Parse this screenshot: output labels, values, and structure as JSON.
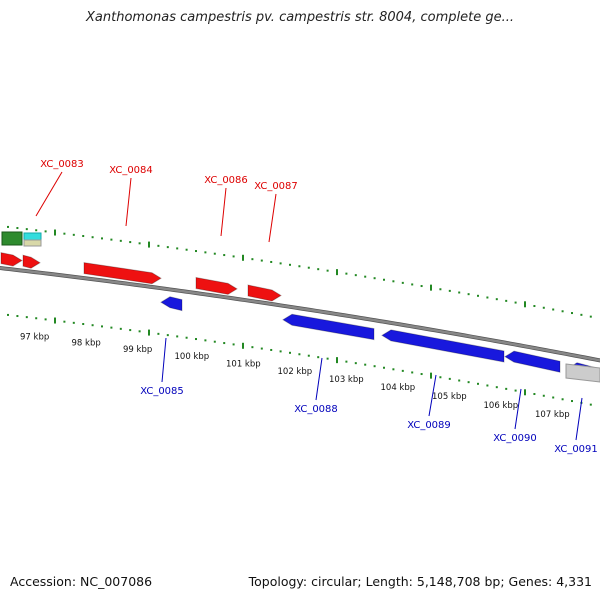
{
  "title": "Xanthomonas campestris pv. campestris str. 8004, complete ge...",
  "footer": {
    "accession": "Accession: NC_007086",
    "stats": "Topology: circular; Length: 5,148,708 bp; Genes: 4,331"
  },
  "colors": {
    "forward_gene": "#ee1111",
    "reverse_gene": "#1818dd",
    "forward_label": "#dd0000",
    "reverse_label": "#0000bb",
    "tick": "#228822",
    "backbone": "#888888",
    "green_feature": "#2e8b2e",
    "cyan_feature": "#33dddd",
    "grey_feature": "#cccccc"
  },
  "tick_labels": [
    "97 kbp",
    "98 kbp",
    "99 kbp",
    "100 kbp",
    "101 kbp",
    "102 kbp",
    "103 kbp",
    "104 kbp",
    "105 kbp",
    "106 kbp",
    "107 kbp"
  ],
  "forward_genes": [
    {
      "label": "XC_0083"
    },
    {
      "label": "XC_0084"
    },
    {
      "label": "XC_0086"
    },
    {
      "label": "XC_0087"
    }
  ],
  "reverse_genes": [
    {
      "label": "XC_0085"
    },
    {
      "label": "XC_0088"
    },
    {
      "label": "XC_0089"
    },
    {
      "label": "XC_0090"
    },
    {
      "label": "XC_0091"
    }
  ]
}
